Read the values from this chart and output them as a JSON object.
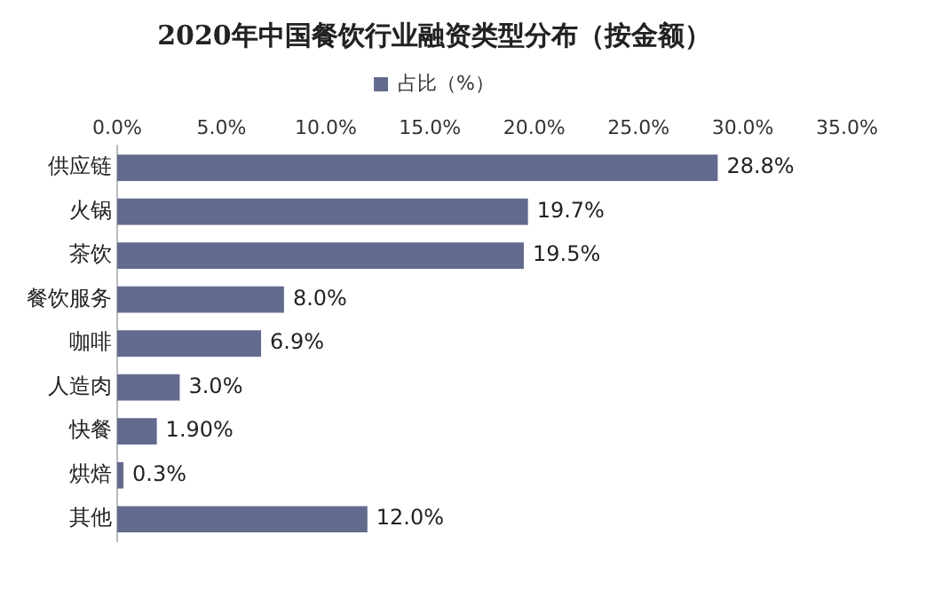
{
  "chart_data": {
    "type": "bar",
    "orientation": "horizontal",
    "title": "2020年中国餐饮行业融资类型分布（按金额）",
    "categories": [
      "供应链",
      "火锅",
      "茶饮",
      "餐饮服务",
      "咖啡",
      "人造肉",
      "快餐",
      "烘焙",
      "其他"
    ],
    "series": [
      {
        "name": "占比（%）",
        "color": "#626b8e",
        "values": [
          28.8,
          19.7,
          19.5,
          8.0,
          6.9,
          3.0,
          1.9,
          0.3,
          12.0
        ],
        "value_labels": [
          "28.8%",
          "19.7%",
          "19.5%",
          "8.0%",
          "6.9%",
          "3.0%",
          "1.90%",
          "0.3%",
          "12.0%"
        ]
      }
    ],
    "xlim": [
      0,
      35
    ],
    "xticks": [
      {
        "value": 0,
        "label": "0.0%"
      },
      {
        "value": 5,
        "label": "5.0%"
      },
      {
        "value": 10,
        "label": "10.0%"
      },
      {
        "value": 15,
        "label": "15.0%"
      },
      {
        "value": 20,
        "label": "20.0%"
      },
      {
        "value": 25,
        "label": "25.0%"
      },
      {
        "value": 30,
        "label": "30.0%"
      },
      {
        "value": 35,
        "label": "35.0%"
      }
    ],
    "grid": false,
    "legend": "top"
  }
}
